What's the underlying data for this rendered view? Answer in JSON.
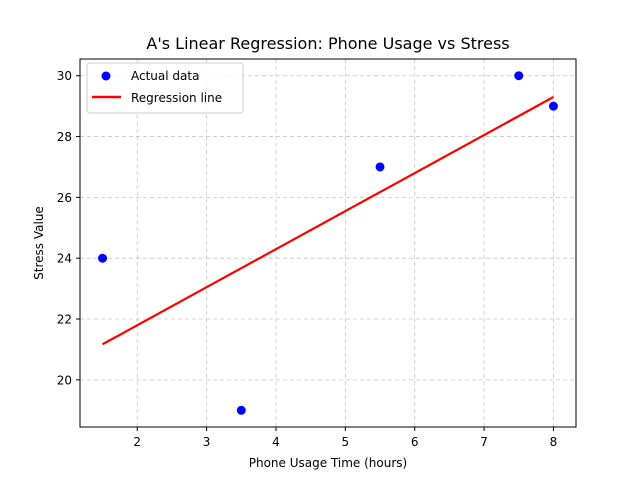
{
  "chart_data": {
    "type": "scatter",
    "title": "A's Linear Regression: Phone Usage vs Stress",
    "xlabel": "Phone Usage Time (hours)",
    "ylabel": "Stress Value",
    "xlim": [
      1.175,
      8.325
    ],
    "ylim": [
      18.45,
      30.55
    ],
    "xticks": [
      2,
      3,
      4,
      5,
      6,
      7,
      8
    ],
    "yticks": [
      20,
      22,
      24,
      26,
      28,
      30
    ],
    "grid": true,
    "grid_style": "dashed",
    "legend_position": "top-left",
    "series": [
      {
        "name": "Actual data",
        "kind": "scatter",
        "color": "#0000ff",
        "points": [
          {
            "x": 1.5,
            "y": 24
          },
          {
            "x": 3.5,
            "y": 19
          },
          {
            "x": 5.5,
            "y": 27
          },
          {
            "x": 7.5,
            "y": 30
          },
          {
            "x": 8.0,
            "y": 29
          }
        ]
      },
      {
        "name": "Regression line",
        "kind": "line",
        "color": "#ff0000",
        "points": [
          {
            "x": 1.5,
            "y": 21.17
          },
          {
            "x": 8.0,
            "y": 29.3
          }
        ]
      }
    ]
  }
}
